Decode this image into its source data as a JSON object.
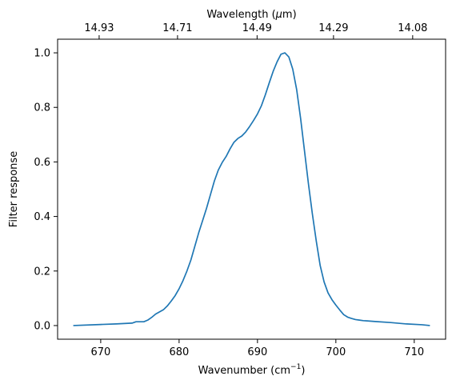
{
  "chart_data": {
    "type": "line",
    "title": "",
    "xlabel": "Wavenumber (cm",
    "xlabel_exponent": "−1",
    "xlabel_close": ")",
    "ylabel": "Filter response",
    "top_xlabel": "Wavelength (",
    "top_xlabel_symbol": "μ",
    "top_xlabel_unit": "m)",
    "xlim": [
      664.5,
      714.0
    ],
    "ylim": [
      -0.05,
      1.05
    ],
    "xticks": [
      670,
      680,
      690,
      700,
      710
    ],
    "xtick_labels": [
      "670",
      "680",
      "690",
      "700",
      "710"
    ],
    "yticks": [
      0.0,
      0.2,
      0.4,
      0.6,
      0.8,
      1.0
    ],
    "ytick_labels": [
      "0.0",
      "0.2",
      "0.4",
      "0.6",
      "0.8",
      "1.0"
    ],
    "top_ticks": [
      669.8,
      679.8,
      689.95,
      699.7,
      709.8
    ],
    "top_tick_labels": [
      "14.93",
      "14.71",
      "14.49",
      "14.29",
      "14.08"
    ],
    "grid": false,
    "line_color": "#1f77b4",
    "series": [
      {
        "x": [
          666.5,
          670,
          672,
          674,
          674.5,
          675,
          675.5,
          676,
          676.5,
          677,
          677.5,
          678,
          678.5,
          679,
          679.5,
          680,
          680.5,
          681,
          681.5,
          682,
          682.5,
          683,
          683.5,
          684,
          684.5,
          685,
          685.5,
          686,
          686.5,
          687,
          687.5,
          688,
          688.5,
          689,
          689.5,
          690,
          690.5,
          691,
          691.5,
          692,
          692.5,
          693,
          693.5,
          694,
          694.5,
          695,
          695.5,
          696,
          696.5,
          697,
          697.5,
          698,
          698.5,
          699,
          699.5,
          700,
          700.5,
          701,
          701.5,
          702,
          702.5,
          703,
          703.5,
          704,
          705,
          707,
          709,
          711,
          712
        ],
        "y": [
          0.0,
          0.004,
          0.006,
          0.009,
          0.014,
          0.014,
          0.014,
          0.02,
          0.03,
          0.042,
          0.05,
          0.058,
          0.072,
          0.09,
          0.11,
          0.135,
          0.165,
          0.2,
          0.24,
          0.29,
          0.34,
          0.385,
          0.43,
          0.48,
          0.53,
          0.57,
          0.598,
          0.62,
          0.648,
          0.672,
          0.686,
          0.695,
          0.71,
          0.73,
          0.752,
          0.776,
          0.806,
          0.846,
          0.89,
          0.932,
          0.967,
          0.995,
          1.0,
          0.985,
          0.94,
          0.865,
          0.76,
          0.64,
          0.52,
          0.41,
          0.31,
          0.22,
          0.16,
          0.12,
          0.095,
          0.075,
          0.057,
          0.04,
          0.031,
          0.026,
          0.022,
          0.02,
          0.018,
          0.017,
          0.015,
          0.011,
          0.006,
          0.003,
          0.0
        ]
      }
    ]
  }
}
